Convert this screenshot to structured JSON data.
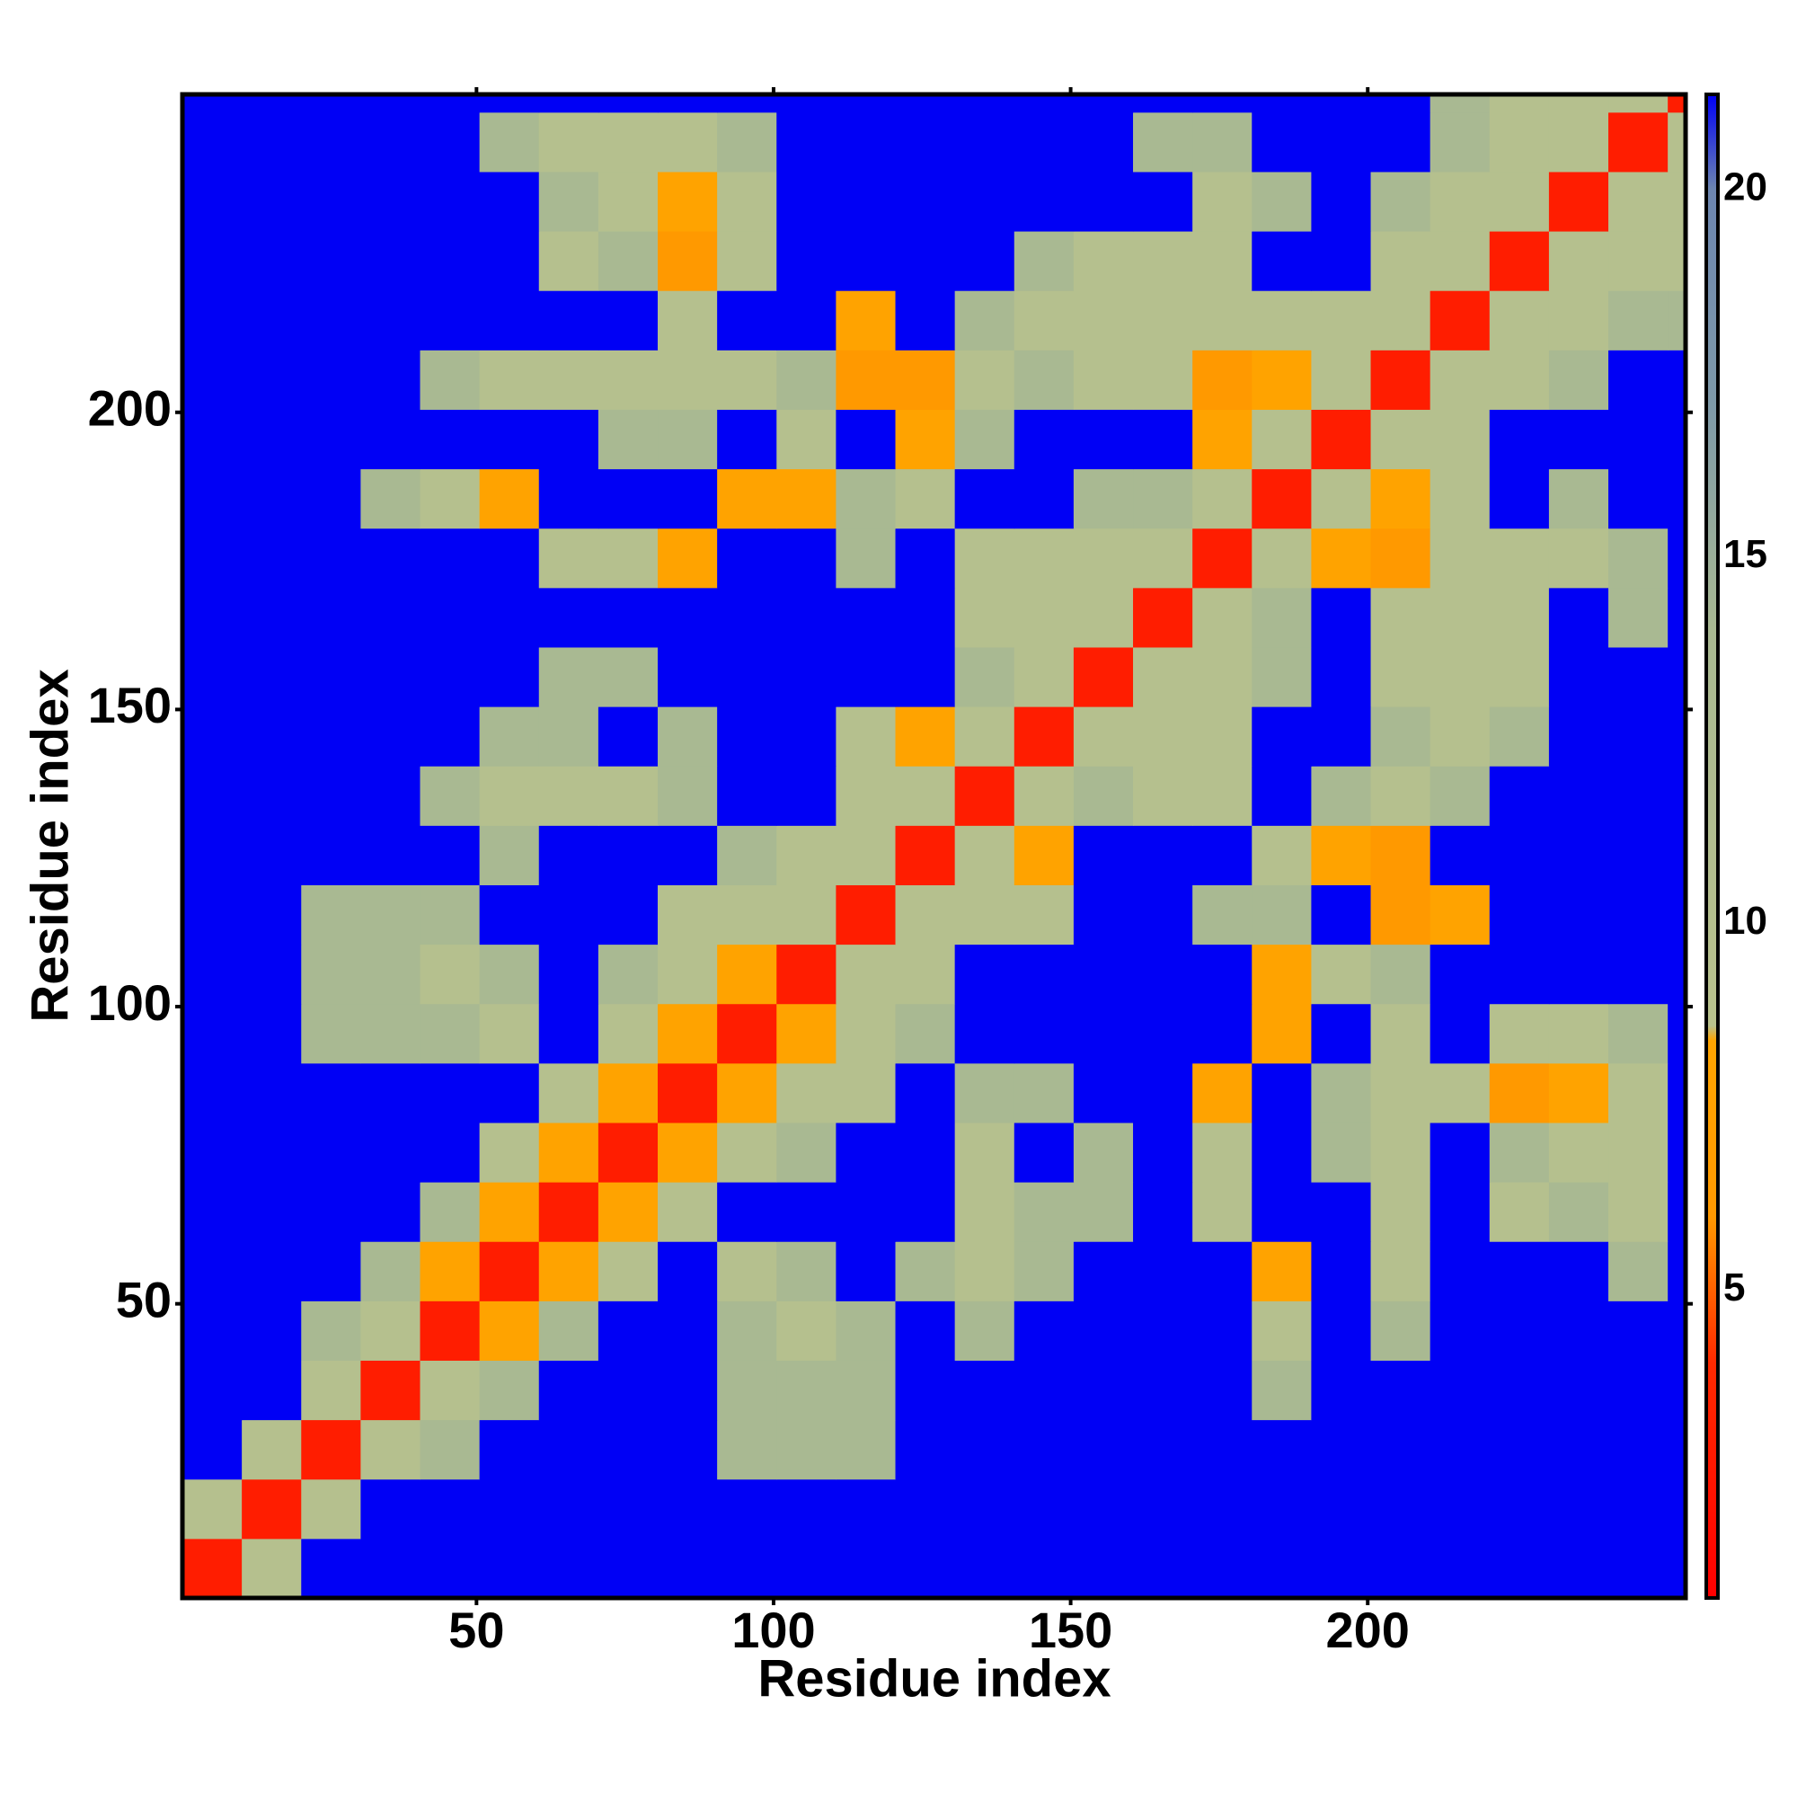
{
  "chart_data": {
    "type": "heatmap",
    "xlabel": "Residue index",
    "ylabel": "Residue index",
    "xlim": [
      0.5,
      253.5
    ],
    "ylim": [
      0.5,
      253.5
    ],
    "xticks": [
      50,
      100,
      150,
      200
    ],
    "yticks": [
      50,
      100,
      150,
      200
    ],
    "x_bins": [
      0.5,
      10.5,
      20.5,
      30.5,
      40.5,
      50.5,
      60.5,
      70.5,
      80.5,
      90.5,
      100.5,
      110.5,
      120.5,
      130.5,
      140.5,
      150.5,
      160.5,
      170.5,
      180.5,
      190.5,
      200.5,
      210.5,
      220.5,
      230.5,
      240.5,
      250.5,
      253.5
    ],
    "y_bins": [
      0.5,
      10.5,
      20.5,
      30.5,
      40.5,
      50.5,
      60.5,
      70.5,
      80.5,
      90.5,
      100.5,
      110.5,
      120.5,
      130.5,
      140.5,
      150.5,
      160.5,
      170.5,
      180.5,
      190.5,
      200.5,
      210.5,
      220.5,
      230.5,
      240.5,
      250.5,
      253.5
    ],
    "z": [
      [
        3,
        10,
        22,
        22,
        22,
        22,
        22,
        22,
        22,
        22,
        22,
        22,
        22,
        22,
        22,
        22,
        22,
        22,
        22,
        22,
        22,
        22,
        22,
        22,
        22,
        22
      ],
      [
        10,
        3,
        10,
        22,
        22,
        22,
        22,
        22,
        22,
        22,
        22,
        22,
        22,
        22,
        22,
        22,
        22,
        22,
        22,
        22,
        22,
        22,
        22,
        22,
        22,
        22
      ],
      [
        22,
        10,
        3,
        10,
        14,
        22,
        22,
        22,
        22,
        14,
        14,
        14,
        22,
        22,
        22,
        22,
        22,
        22,
        22,
        22,
        22,
        22,
        22,
        22,
        22,
        22
      ],
      [
        22,
        22,
        10,
        3,
        10,
        14,
        22,
        22,
        22,
        14,
        14,
        14,
        22,
        22,
        22,
        22,
        22,
        22,
        14,
        22,
        22,
        22,
        22,
        22,
        22,
        22
      ],
      [
        22,
        22,
        14,
        10,
        3,
        8,
        14,
        22,
        22,
        14,
        10,
        14,
        22,
        14,
        22,
        22,
        22,
        22,
        10,
        22,
        14,
        22,
        22,
        22,
        22,
        22
      ],
      [
        22,
        22,
        22,
        14,
        8,
        3,
        8,
        10,
        22,
        10,
        14,
        22,
        14,
        10,
        14,
        22,
        22,
        22,
        8,
        22,
        10,
        22,
        22,
        22,
        14,
        22
      ],
      [
        22,
        22,
        22,
        22,
        14,
        8,
        3,
        8,
        10,
        22,
        22,
        22,
        22,
        10,
        14,
        14,
        22,
        10,
        22,
        22,
        10,
        22,
        10,
        14,
        10,
        22
      ],
      [
        22,
        22,
        22,
        22,
        22,
        10,
        8,
        3,
        8,
        10,
        14,
        22,
        22,
        10,
        22,
        14,
        22,
        10,
        22,
        14,
        10,
        22,
        14,
        10,
        10,
        22
      ],
      [
        22,
        22,
        22,
        22,
        22,
        22,
        10,
        8,
        3,
        8,
        10,
        10,
        22,
        14,
        14,
        22,
        22,
        8,
        22,
        14,
        10,
        10,
        6,
        8,
        10,
        22
      ],
      [
        22,
        22,
        14,
        14,
        14,
        10,
        22,
        10,
        8,
        3,
        8,
        10,
        14,
        22,
        22,
        22,
        22,
        22,
        8,
        22,
        10,
        22,
        10,
        10,
        14,
        22
      ],
      [
        22,
        22,
        14,
        14,
        10,
        14,
        22,
        14,
        10,
        8,
        3,
        10,
        10,
        22,
        22,
        22,
        22,
        22,
        8,
        10,
        14,
        22,
        22,
        22,
        22,
        22
      ],
      [
        22,
        22,
        14,
        14,
        14,
        22,
        22,
        22,
        10,
        10,
        10,
        3,
        10,
        10,
        10,
        22,
        22,
        14,
        14,
        22,
        6,
        8,
        22,
        22,
        22,
        22
      ],
      [
        22,
        22,
        22,
        22,
        22,
        14,
        22,
        22,
        22,
        14,
        10,
        10,
        3,
        10,
        8,
        22,
        22,
        22,
        10,
        8,
        6,
        22,
        22,
        22,
        22,
        22
      ],
      [
        22,
        22,
        22,
        22,
        14,
        10,
        10,
        10,
        14,
        22,
        22,
        10,
        10,
        3,
        10,
        14,
        10,
        10,
        22,
        14,
        10,
        14,
        22,
        22,
        22,
        22
      ],
      [
        22,
        22,
        22,
        22,
        22,
        14,
        14,
        22,
        14,
        22,
        22,
        10,
        8,
        10,
        3,
        10,
        10,
        10,
        22,
        22,
        14,
        10,
        14,
        22,
        22,
        22
      ],
      [
        22,
        22,
        22,
        22,
        22,
        22,
        14,
        14,
        22,
        22,
        22,
        22,
        22,
        14,
        10,
        3,
        10,
        10,
        14,
        22,
        10,
        10,
        10,
        22,
        22,
        22
      ],
      [
        22,
        22,
        22,
        22,
        22,
        22,
        22,
        22,
        22,
        22,
        22,
        22,
        22,
        10,
        10,
        10,
        3,
        10,
        14,
        22,
        10,
        10,
        10,
        22,
        14,
        22
      ],
      [
        22,
        22,
        22,
        22,
        22,
        22,
        10,
        10,
        8,
        22,
        22,
        14,
        22,
        10,
        10,
        10,
        10,
        3,
        10,
        8,
        6,
        10,
        10,
        10,
        14,
        22
      ],
      [
        22,
        22,
        22,
        14,
        10,
        8,
        22,
        22,
        22,
        8,
        8,
        14,
        10,
        22,
        22,
        14,
        14,
        10,
        3,
        10,
        8,
        10,
        22,
        14,
        22,
        22
      ],
      [
        22,
        22,
        22,
        22,
        22,
        22,
        22,
        14,
        14,
        22,
        10,
        22,
        8,
        14,
        22,
        22,
        22,
        8,
        10,
        3,
        10,
        10,
        22,
        22,
        22,
        22
      ],
      [
        22,
        22,
        22,
        22,
        14,
        10,
        10,
        10,
        10,
        10,
        14,
        6,
        6,
        10,
        14,
        10,
        10,
        6,
        8,
        10,
        3,
        10,
        10,
        14,
        22,
        22
      ],
      [
        22,
        22,
        22,
        22,
        22,
        22,
        22,
        22,
        10,
        22,
        22,
        8,
        22,
        14,
        10,
        10,
        10,
        10,
        10,
        10,
        10,
        3,
        10,
        10,
        14,
        14
      ],
      [
        22,
        22,
        22,
        22,
        22,
        22,
        10,
        14,
        6,
        10,
        22,
        22,
        22,
        22,
        14,
        10,
        10,
        10,
        22,
        22,
        10,
        10,
        3,
        10,
        10,
        10
      ],
      [
        22,
        22,
        22,
        22,
        22,
        22,
        14,
        10,
        8,
        10,
        22,
        22,
        22,
        22,
        22,
        22,
        22,
        10,
        14,
        22,
        14,
        10,
        10,
        3,
        10,
        10
      ],
      [
        22,
        22,
        22,
        22,
        22,
        14,
        10,
        10,
        10,
        14,
        22,
        22,
        22,
        22,
        22,
        22,
        14,
        14,
        22,
        22,
        22,
        14,
        10,
        10,
        3,
        10
      ],
      [
        22,
        22,
        22,
        22,
        22,
        22,
        22,
        22,
        22,
        22,
        22,
        22,
        22,
        22,
        22,
        22,
        22,
        22,
        22,
        22,
        22,
        14,
        10,
        10,
        10,
        3
      ]
    ],
    "colorscale": [
      [
        0.8,
        "#ff0000"
      ],
      [
        4,
        "#ff2a00"
      ],
      [
        6,
        "#ff9900"
      ],
      [
        8.4,
        "#ffa500"
      ],
      [
        8.6,
        "#b9c28d"
      ],
      [
        14,
        "#a9b992"
      ],
      [
        17,
        "#7f9aa8"
      ],
      [
        20,
        "#6d86b0"
      ],
      [
        21.3,
        "#0000f5"
      ]
    ],
    "colorbar": {
      "range": [
        0.8,
        21.3
      ],
      "ticks": [
        5,
        10,
        15,
        20
      ]
    }
  }
}
